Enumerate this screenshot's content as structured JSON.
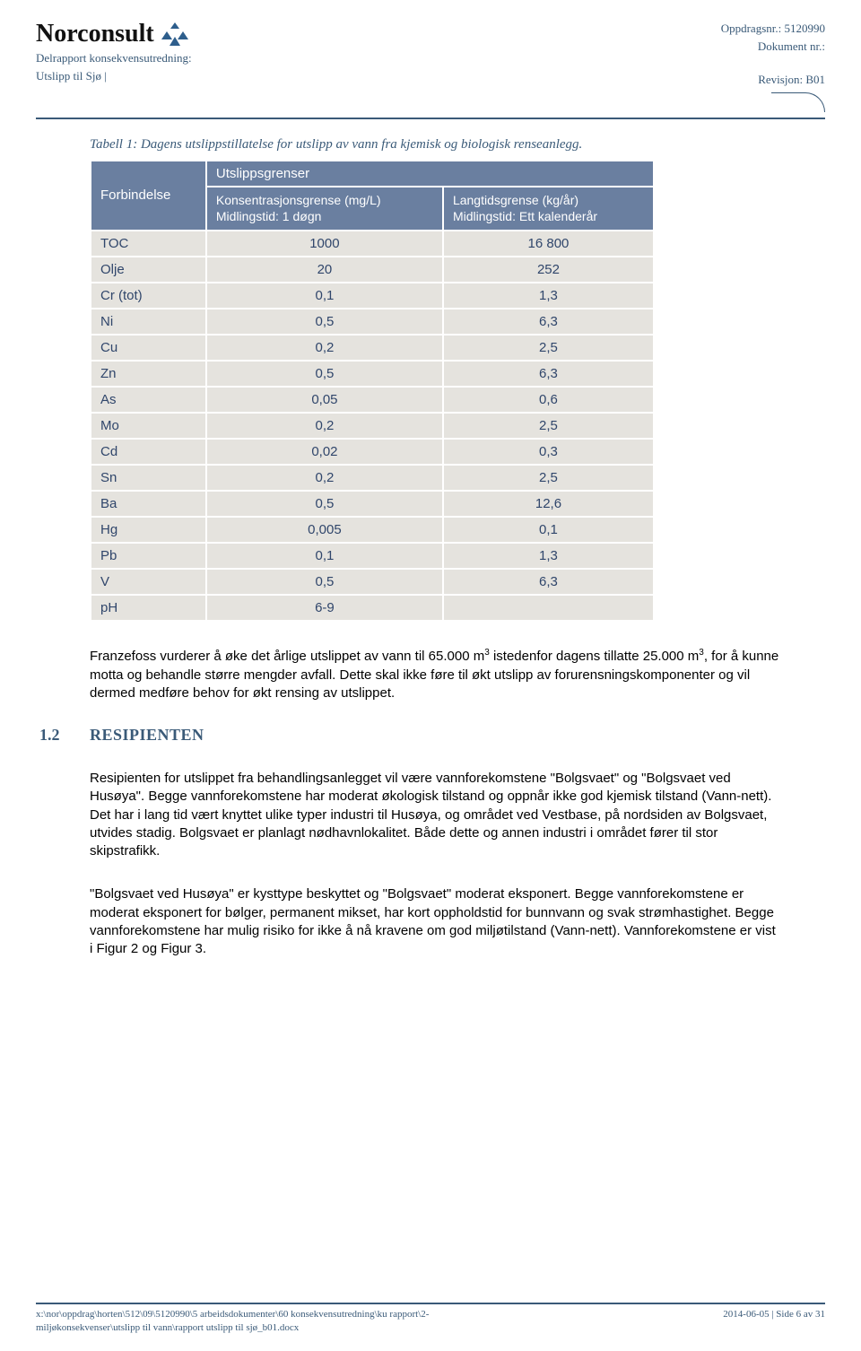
{
  "header": {
    "logo_text": "Norconsult",
    "sub1": "Delrapport konsekvensutredning:",
    "sub2": "Utslipp til Sjø |",
    "oppdrag_label": "Oppdragsnr.: 5120990",
    "dokument_label": "Dokument nr.:",
    "revisjon_label": "Revisjon: B01"
  },
  "table": {
    "caption": "Tabell 1: Dagens utslippstillatelse for utslipp av vann fra kjemisk og biologisk renseanlegg.",
    "col1_label": "Forbindelse",
    "group_label": "Utslippsgrenser",
    "col2_label": "Konsentrasjonsgrense (mg/L)\nMidlingstid: 1 døgn",
    "col3_label": "Langtidsgrense (kg/år)\nMidlingstid: Ett kalenderår",
    "rows": [
      {
        "p": "TOC",
        "a": "1000",
        "b": "16 800"
      },
      {
        "p": "Olje",
        "a": "20",
        "b": "252"
      },
      {
        "p": "Cr (tot)",
        "a": "0,1",
        "b": "1,3"
      },
      {
        "p": "Ni",
        "a": "0,5",
        "b": "6,3"
      },
      {
        "p": "Cu",
        "a": "0,2",
        "b": "2,5"
      },
      {
        "p": "Zn",
        "a": "0,5",
        "b": "6,3"
      },
      {
        "p": "As",
        "a": "0,05",
        "b": "0,6"
      },
      {
        "p": "Mo",
        "a": "0,2",
        "b": "2,5"
      },
      {
        "p": "Cd",
        "a": "0,02",
        "b": "0,3"
      },
      {
        "p": "Sn",
        "a": "0,2",
        "b": "2,5"
      },
      {
        "p": "Ba",
        "a": "0,5",
        "b": "12,6"
      },
      {
        "p": "Hg",
        "a": "0,005",
        "b": "0,1"
      },
      {
        "p": "Pb",
        "a": "0,1",
        "b": "1,3"
      },
      {
        "p": "V",
        "a": "0,5",
        "b": "6,3"
      },
      {
        "p": "pH",
        "a": "6-9",
        "b": ""
      }
    ]
  },
  "paragraphs": {
    "p1_a": "Franzefoss vurderer å øke det årlige utslippet av vann til 65.000 m",
    "p1_b": " istedenfor dagens tillatte 25.000 m",
    "p1_c": ", for å kunne motta og behandle større mengder avfall. Dette skal ikke føre til økt utslipp av forurensningskomponenter og vil dermed medføre behov for økt rensing av utslippet.",
    "sup": "3"
  },
  "section": {
    "num": "1.2",
    "title": "RESIPIENTEN",
    "p1": "Resipienten for utslippet fra behandlingsanlegget vil være vannforekomstene \"Bolgsvaet\" og \"Bolgsvaet ved Husøya\". Begge vannforekomstene har moderat økologisk tilstand og oppnår ikke god kjemisk tilstand (Vann-nett). Det har i lang tid vært knyttet ulike typer industri til Husøya, og området ved Vestbase, på nordsiden av Bolgsvaet, utvides stadig. Bolgsvaet er planlagt nødhavnlokalitet. Både dette og annen industri i området fører til stor skipstrafikk.",
    "p2": "\"Bolgsvaet ved Husøya\" er kysttype beskyttet og \"Bolgsvaet\" moderat eksponert. Begge vannforekomstene er moderat eksponert for bølger, permanent mikset, har kort oppholdstid for bunnvann og svak strømhastighet. Begge vannforekomstene har mulig risiko for ikke å nå kravene om god miljøtilstand (Vann-nett). Vannforekomstene er vist i Figur 2 og Figur 3."
  },
  "footer": {
    "path1": "x:\\nor\\oppdrag\\horten\\512\\09\\5120990\\5 arbeidsdokumenter\\60 konsekvensutredning\\ku rapport\\2-",
    "path2": "miljøkonsekvenser\\utslipp til vann\\rapport utslipp til sjø_b01.docx",
    "right": "2014-06-05 | Side 6 av 31"
  },
  "colors": {
    "accent": "#3a5a78",
    "table_header": "#6a7fa0",
    "table_cell": "#e5e3de",
    "table_text": "#30466b"
  }
}
